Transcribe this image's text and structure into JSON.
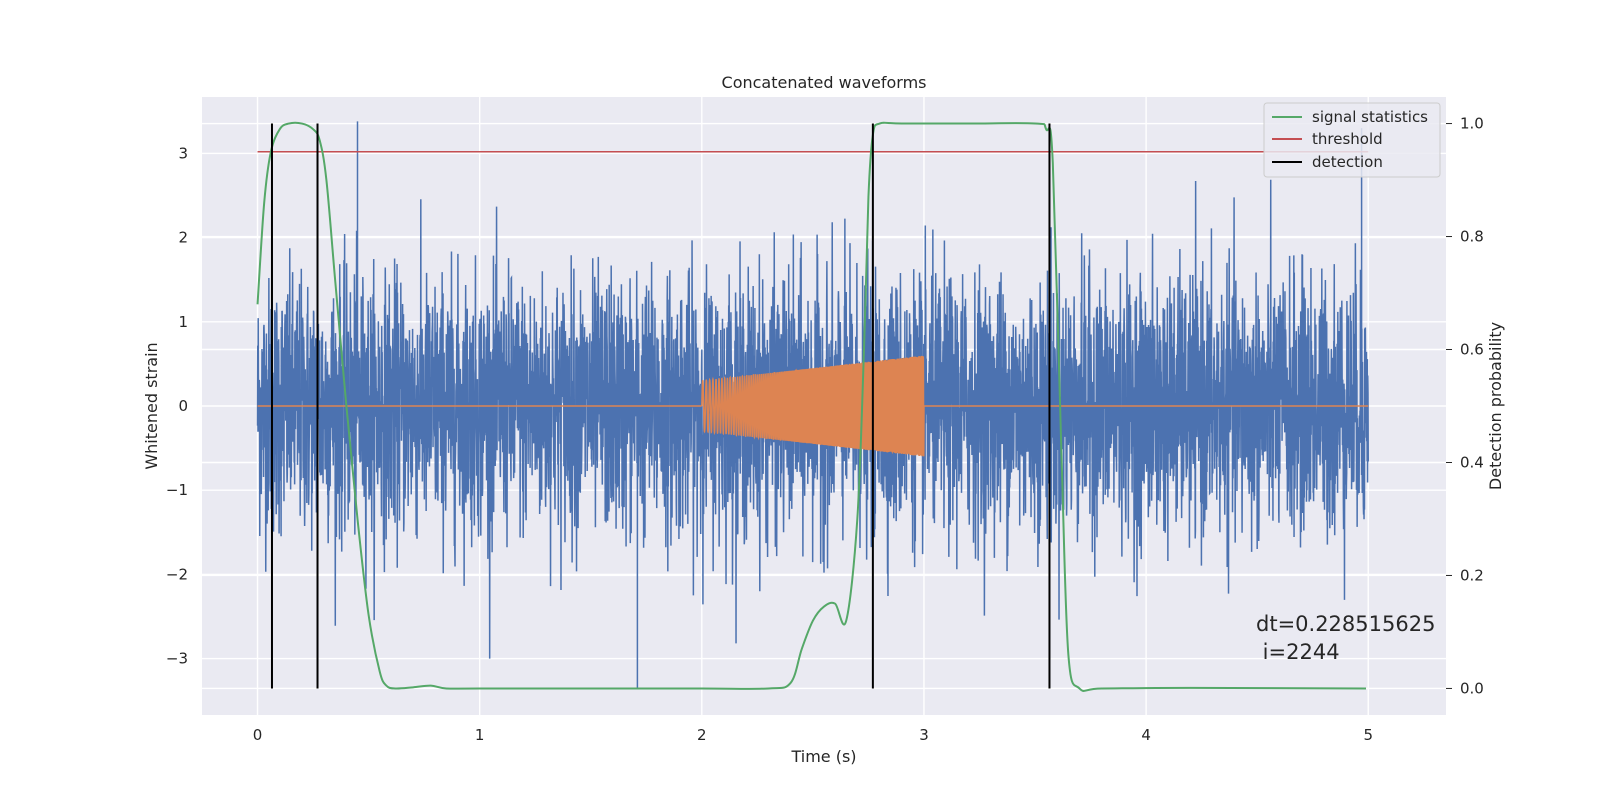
{
  "chart_data": {
    "type": "line",
    "title": "Concatenated waveforms",
    "xlabel": "Time (s)",
    "ylabel": "Whitened strain",
    "ylabel_right": "Detection probability",
    "xlim": [
      -0.25,
      5.35
    ],
    "ylim": [
      -3.67,
      3.67
    ],
    "ylim_right": [
      -0.047,
      1.047
    ],
    "x_ticks": [
      0,
      1,
      2,
      3,
      4,
      5
    ],
    "x_tick_labels": [
      "0",
      "1",
      "2",
      "3",
      "4",
      "5"
    ],
    "y_ticks": [
      -3,
      -2,
      -1,
      0,
      1,
      2,
      3
    ],
    "y_tick_labels": [
      "−3",
      "−2",
      "−1",
      "0",
      "1",
      "2",
      "3"
    ],
    "y_right_ticks": [
      0.0,
      0.2,
      0.4,
      0.6,
      0.8,
      1.0
    ],
    "y_right_tick_labels": [
      "0.0",
      "0.2",
      "0.4",
      "0.6",
      "0.8",
      "1.0"
    ],
    "grid": true,
    "background": "#eaeaf2",
    "legend_position": "top-right",
    "series": [
      {
        "name": "",
        "kind": "noise",
        "axis": "left",
        "color": "#4c72b0",
        "x_range": [
          0,
          5
        ],
        "std": 0.75,
        "extremes": [
          {
            "x": 0.45,
            "y": 3.38
          },
          {
            "x": 1.71,
            "y": -3.35
          },
          {
            "x": 4.97,
            "y": 3.3
          }
        ]
      },
      {
        "name": "",
        "kind": "chirp",
        "axis": "left",
        "color": "#dd8452",
        "x_range": [
          0,
          5
        ],
        "chirp_range": [
          2.0,
          3.0
        ],
        "amplitude_start": 0.3,
        "amplitude_end": 0.6
      },
      {
        "name": "signal statistics",
        "axis": "right",
        "color": "#55a868",
        "x": [
          0.0,
          0.03,
          0.06,
          0.1,
          0.14,
          0.2,
          0.25,
          0.28,
          0.31,
          0.35,
          0.4,
          0.45,
          0.5,
          0.55,
          0.58,
          0.62,
          0.7,
          0.78,
          0.85,
          1.0,
          1.5,
          2.0,
          2.3,
          2.4,
          2.45,
          2.5,
          2.55,
          2.6,
          2.65,
          2.7,
          2.73,
          2.75,
          2.77,
          2.8,
          2.9,
          3.2,
          3.5,
          3.55,
          3.58,
          3.62,
          3.65,
          3.7,
          3.8,
          4.2,
          4.99
        ],
        "values": [
          0.68,
          0.86,
          0.95,
          0.99,
          1.0,
          1.0,
          0.99,
          0.97,
          0.9,
          0.72,
          0.5,
          0.3,
          0.13,
          0.03,
          0.005,
          0.0,
          0.002,
          0.005,
          0.0,
          0.0,
          0.0,
          0.0,
          0.0,
          0.01,
          0.07,
          0.12,
          0.145,
          0.15,
          0.12,
          0.3,
          0.6,
          0.87,
          0.98,
          1.0,
          1.0,
          1.0,
          1.0,
          0.99,
          0.93,
          0.4,
          0.06,
          0.0,
          0.0,
          0.001,
          0.0
        ]
      },
      {
        "name": "threshold",
        "axis": "right",
        "color": "#c44e52",
        "x": [
          0.0,
          5.0
        ],
        "values": [
          0.95,
          0.95
        ]
      },
      {
        "name": "detection",
        "axis": "right",
        "color": "#000000",
        "kind": "vlines",
        "x": [
          0.065,
          0.27,
          2.77,
          3.565
        ],
        "range": [
          0.0,
          1.0
        ]
      }
    ],
    "annotation": [
      "dt=0.228515625",
      " i=2244"
    ]
  }
}
